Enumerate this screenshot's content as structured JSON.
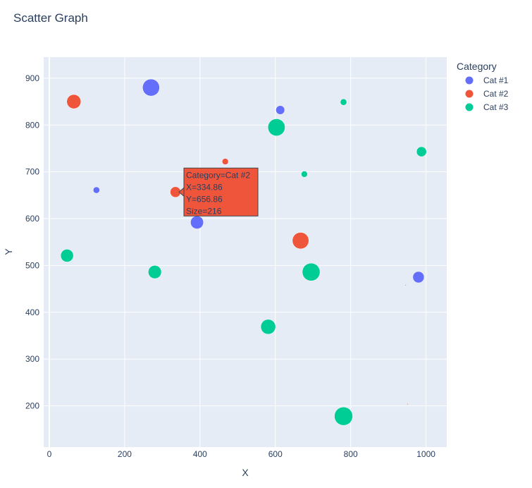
{
  "chart_data": {
    "type": "scatter",
    "title": "Scatter Graph",
    "xlabel": "X",
    "ylabel": "Y",
    "xlim": [
      -15,
      1055
    ],
    "ylim": [
      112,
      945
    ],
    "x_ticks": [
      0,
      200,
      400,
      600,
      800,
      1000
    ],
    "y_ticks": [
      200,
      300,
      400,
      500,
      600,
      700,
      800,
      900
    ],
    "grid": true,
    "legend": {
      "title": "Category",
      "placement": "right"
    },
    "series": [
      {
        "name": "Cat #1",
        "color": "#636efa",
        "points": [
          {
            "x": 270,
            "y": 880,
            "size": 550
          },
          {
            "x": 125,
            "y": 661,
            "size": 80
          },
          {
            "x": 613,
            "y": 832,
            "size": 150
          },
          {
            "x": 392,
            "y": 592,
            "size": 320
          },
          {
            "x": 980,
            "y": 475,
            "size": 250
          },
          {
            "x": 946,
            "y": 458,
            "size": 0
          }
        ]
      },
      {
        "name": "Cat #2",
        "color": "#ef553b",
        "points": [
          {
            "x": 65,
            "y": 850,
            "size": 380
          },
          {
            "x": 467,
            "y": 722,
            "size": 75
          },
          {
            "x": 334.86,
            "y": 656.86,
            "size": 216
          },
          {
            "x": 667,
            "y": 553,
            "size": 520
          },
          {
            "x": 951,
            "y": 204,
            "size": 0
          }
        ]
      },
      {
        "name": "Cat #3",
        "color": "#00cc96",
        "points": [
          {
            "x": 781,
            "y": 849,
            "size": 80
          },
          {
            "x": 603,
            "y": 795,
            "size": 560
          },
          {
            "x": 988,
            "y": 743,
            "size": 190
          },
          {
            "x": 677,
            "y": 695,
            "size": 75
          },
          {
            "x": 47,
            "y": 521,
            "size": 310
          },
          {
            "x": 280,
            "y": 486,
            "size": 330
          },
          {
            "x": 695,
            "y": 486,
            "size": 600
          },
          {
            "x": 581,
            "y": 369,
            "size": 420
          },
          {
            "x": 781,
            "y": 178,
            "size": 640
          }
        ]
      }
    ],
    "hover": {
      "series": 1,
      "point": 2,
      "lines": [
        "Category=Cat #2",
        "X=334.86",
        "Y=656.86",
        "Size=216"
      ]
    }
  }
}
